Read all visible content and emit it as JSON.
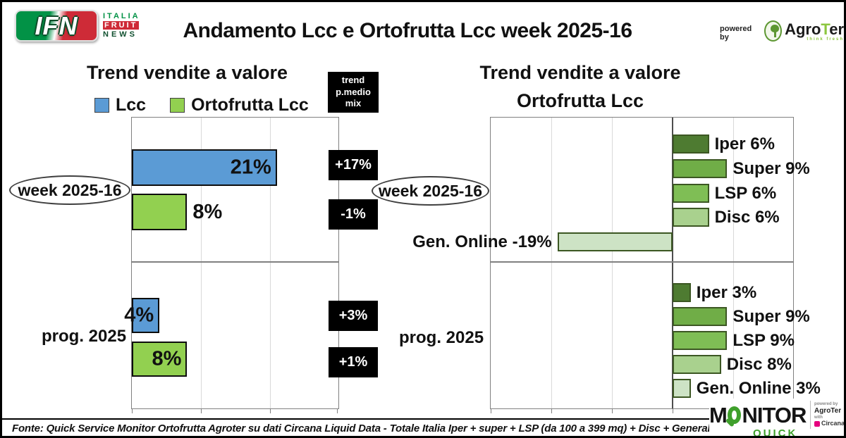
{
  "header": {
    "title": "Andamento Lcc e Ortofrutta Lcc week 2025-16",
    "ifn": {
      "acronym": "IFN",
      "italia": "ITALIA",
      "fruit": "FRUIT",
      "news": "NEWS"
    },
    "powered_by": "powered by",
    "agroter": {
      "part1": "Agro",
      "part2": "T",
      "part3": "er",
      "tagline": "think fresh"
    }
  },
  "footer": {
    "fonte": "Fonte: Quick Service Monitor Ortofrutta Agroter su dati Circana Liquid Data - Totale Italia Iper + super + LSP (da 100 a 399 mq) + Disc + Generalisti Online - Lcc",
    "monitor": {
      "m": "M",
      "rest": "NITOR",
      "quick": "QUICK",
      "powered_by": "powered by",
      "agroter": "AgroTer",
      "with": "with",
      "circana": "Circana"
    }
  },
  "chart_data": [
    {
      "type": "bar",
      "orientation": "horizontal",
      "title": "Trend vendite a valore",
      "categories": [
        "week 2025-16",
        "prog. 2025"
      ],
      "series": [
        {
          "name": "Lcc",
          "color": "#5B9BD5",
          "values": [
            21,
            4
          ],
          "labels": [
            "21%",
            "4%"
          ]
        },
        {
          "name": "Ortofrutta Lcc",
          "color": "#92D050",
          "values": [
            8,
            8
          ],
          "labels": [
            "8%",
            "8%"
          ]
        }
      ],
      "xlim": [
        0,
        30
      ],
      "grid_step": 10,
      "grid": true,
      "legend_position": "top",
      "trend_box": {
        "line1": "trend",
        "line2": "p.medio",
        "line3": "mix",
        "values": {
          "week_lcc": "+17%",
          "week_orto": "-1%",
          "prog_lcc": "+3%",
          "prog_orto": "+1%"
        }
      }
    },
    {
      "type": "bar",
      "orientation": "horizontal",
      "title_line1": "Trend vendite a valore",
      "title_line2": "Ortofrutta Lcc",
      "categories": [
        "week 2025-16",
        "prog. 2025"
      ],
      "groups": [
        {
          "category": "week 2025-16",
          "bars": [
            {
              "name": "Iper",
              "value": 6,
              "label": "Iper 6%",
              "color": "#4E7B31"
            },
            {
              "name": "Super",
              "value": 9,
              "label": "Super 9%",
              "color": "#70AD47"
            },
            {
              "name": "LSP",
              "value": 6,
              "label": "LSP 6%",
              "color": "#7FBE55"
            },
            {
              "name": "Disc",
              "value": 6,
              "label": "Disc 6%",
              "color": "#A9D18E"
            },
            {
              "name": "Gen. Online",
              "value": -19,
              "label": "Gen. Online -19%",
              "color": "#CDE3C5"
            }
          ]
        },
        {
          "category": "prog. 2025",
          "bars": [
            {
              "name": "Iper",
              "value": 3,
              "label": "Iper 3%",
              "color": "#4E7B31"
            },
            {
              "name": "Super",
              "value": 9,
              "label": "Super 9%",
              "color": "#70AD47"
            },
            {
              "name": "LSP",
              "value": 9,
              "label": "LSP 9%",
              "color": "#7FBE55"
            },
            {
              "name": "Disc",
              "value": 8,
              "label": "Disc 8%",
              "color": "#A9D18E"
            },
            {
              "name": "Gen. Online",
              "value": 3,
              "label": "Gen. Online 3%",
              "color": "#CDE3C5"
            }
          ]
        }
      ],
      "xlim": [
        -30,
        20
      ],
      "grid_step": 10,
      "grid": true
    }
  ]
}
